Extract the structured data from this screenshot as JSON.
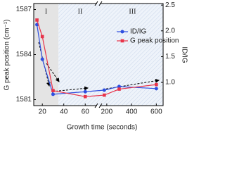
{
  "chart_data": {
    "type": "line",
    "xlabel": "Growth time (seconds)",
    "ylabel": "G peak position (cm⁻¹)",
    "y2label": "ID/IG",
    "x": [
      15,
      20,
      30,
      60,
      180,
      300,
      600
    ],
    "xlim": [
      12,
      655
    ],
    "xbreak": [
      71,
      144
    ],
    "xticks": [
      20,
      40,
      60,
      200,
      400,
      600
    ],
    "ylim": [
      1580.6,
      1587.4
    ],
    "yticks": [
      1581,
      1584,
      1587
    ],
    "y2lim": [
      0.55,
      2.53
    ],
    "y2ticks": [
      {
        "value": 1,
        "label": "1.0"
      },
      1.5,
      {
        "value": 2,
        "label": "2.0"
      },
      2.5
    ],
    "regions": [
      {
        "label": "I",
        "x": [
          12,
          35
        ]
      },
      {
        "label": "II",
        "x": [
          35,
          160
        ]
      },
      {
        "label": "III",
        "x": [
          160,
          655
        ]
      }
    ],
    "legend": "upper right",
    "series": [
      {
        "name": "ID/IG",
        "color": "#2f4fe0",
        "marker": "circle",
        "axis": "y2",
        "values": [
          2.12,
          1.45,
          0.77,
          0.82,
          0.85,
          0.92,
          0.88
        ]
      },
      {
        "name": "G peak position",
        "color": "#e8334a",
        "marker": "square",
        "values": [
          1586.3,
          1585.2,
          1581.6,
          1581.2,
          1581.3,
          1581.7,
          1582.0
        ]
      }
    ]
  }
}
